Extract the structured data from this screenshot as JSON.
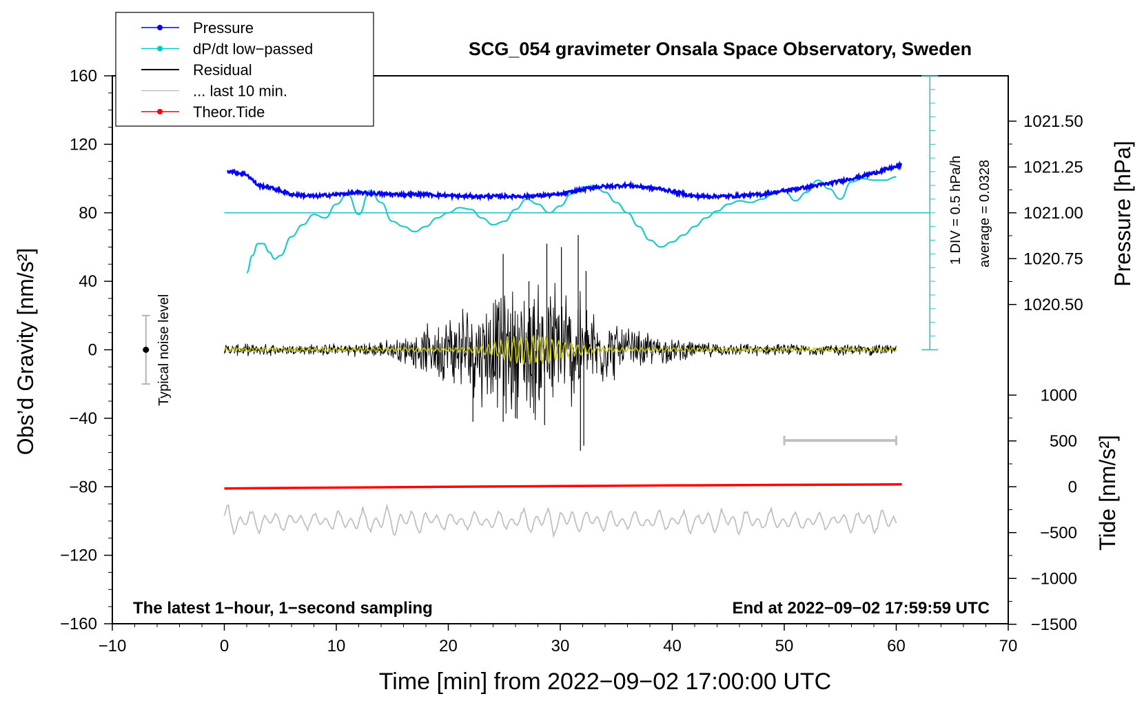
{
  "chart_data": {
    "type": "line",
    "title": "SCG_054 gravimeter Onsala Space Observatory, Sweden",
    "xlabel": "Time [min] from 2022−09−02 17:00:00 UTC",
    "ylabel_left": "Obs’d Gravity [nm/s²]",
    "ylabel_right_top": "Pressure [hPa]",
    "ylabel_right_bottom": "Tide [nm/s²]",
    "xlim": [
      -10,
      70
    ],
    "ylim": [
      -160,
      160
    ],
    "x_ticks": [
      "−10",
      "0",
      "10",
      "20",
      "30",
      "40",
      "50",
      "60",
      "70"
    ],
    "y_ticks": [
      "160",
      "120",
      "80",
      "40",
      "0",
      "−40",
      "−80",
      "−120",
      "−160"
    ],
    "pressure_ticks": [
      "1021.50",
      "1021.25",
      "1021.00",
      "1020.75",
      "1020.50"
    ],
    "tide_ticks": [
      "1000",
      "500",
      "0",
      "−500",
      "−1000",
      "−1500"
    ],
    "legend": [
      {
        "label": "Pressure",
        "color": "#0000ff",
        "marker": true
      },
      {
        "label": "dP/dt low−passed",
        "color": "#00c8c8",
        "marker": true
      },
      {
        "label": "Residual",
        "color": "#000000",
        "marker": false
      },
      {
        "label": "... last 10 min.",
        "color": "#c0c0c0",
        "marker": false
      },
      {
        "label": "Theor.Tide",
        "color": "#ff0000",
        "marker": true
      }
    ],
    "annotations": {
      "noise": "Typical noise level",
      "div": "1 DIV = 0.5 hPa/h",
      "avg": "average = 0.0328",
      "bottom_left": "The latest 1−hour, 1−second sampling",
      "bottom_right": "End at 2022−09−02 17:59:59 UTC"
    },
    "noise_bar": {
      "x": -7,
      "center": 0,
      "half_range": 20
    },
    "last10_bar": {
      "x_start": 50,
      "x_end": 60,
      "y": -53
    },
    "pressure_hpa": {
      "x": [
        0.3,
        1,
        2,
        3,
        4,
        5,
        6,
        8,
        10,
        12,
        15,
        18,
        21,
        24,
        27,
        30,
        33,
        36,
        39,
        42,
        45,
        48,
        51,
        54,
        57,
        60.5
      ],
      "y": [
        1021.23,
        1021.22,
        1021.21,
        1021.15,
        1021.14,
        1021.12,
        1021.1,
        1021.09,
        1021.1,
        1021.11,
        1021.1,
        1021.1,
        1021.09,
        1021.09,
        1021.09,
        1021.1,
        1021.14,
        1021.15,
        1021.13,
        1021.09,
        1021.09,
        1021.1,
        1021.13,
        1021.16,
        1021.2,
        1021.26
      ]
    },
    "dpdt_lowpassed": {
      "x": [
        2,
        2.5,
        3,
        3.5,
        4,
        4.5,
        5,
        6,
        7,
        8,
        9,
        10,
        11,
        12,
        13,
        14,
        15,
        16,
        17,
        18,
        19,
        20,
        21,
        22,
        23,
        24,
        25,
        26,
        27,
        28,
        29,
        30,
        31,
        32,
        33,
        34,
        35,
        36,
        37,
        38,
        39,
        40,
        41,
        42,
        43,
        44,
        45,
        46,
        47,
        48,
        49,
        50,
        51,
        52,
        53,
        54,
        55,
        56,
        57,
        58,
        59,
        60
      ],
      "y": [
        45,
        55,
        62,
        62,
        57,
        53,
        55,
        66,
        73,
        79,
        77,
        85,
        91,
        79,
        93,
        86,
        75,
        72,
        69,
        72,
        77,
        80,
        83,
        82,
        77,
        73,
        75,
        82,
        88,
        85,
        80,
        84,
        91,
        95,
        96,
        92,
        86,
        80,
        72,
        64,
        60,
        63,
        67,
        72,
        77,
        81,
        85,
        87,
        86,
        88,
        91,
        93,
        87,
        92,
        99,
        94,
        88,
        98,
        100,
        99,
        99,
        101
      ]
    },
    "dpdt_zero_level": 80,
    "residual": {
      "x_start": 0,
      "x_end": 60,
      "peak_min": -59,
      "peak_max": 67
    },
    "residual_lowpassed": {
      "x_start": 0,
      "x_end": 60,
      "color": "#c8c800"
    },
    "last_10_min": {
      "x_start": 0,
      "x_end": 60,
      "center": -100,
      "amplitude": 10
    },
    "theor_tide": {
      "x": [
        0,
        10,
        20,
        30,
        40,
        50,
        60.5
      ],
      "y": [
        -81,
        -80.5,
        -80,
        -79.6,
        -79.2,
        -78.9,
        -78.6
      ]
    }
  }
}
